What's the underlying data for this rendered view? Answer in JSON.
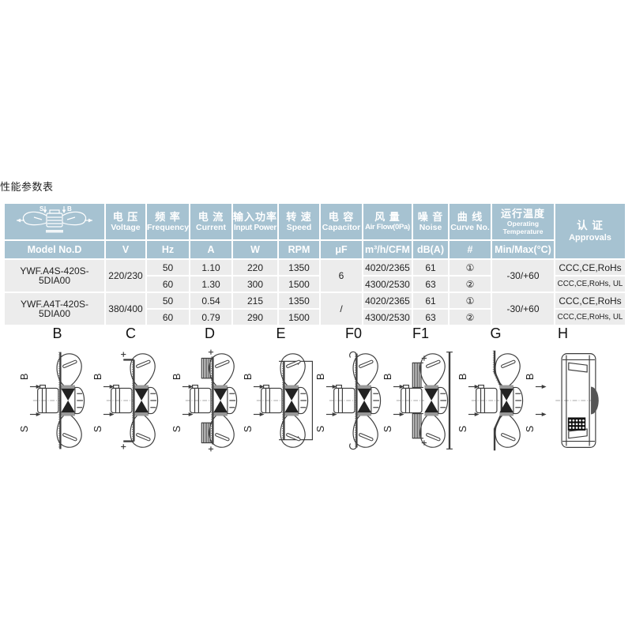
{
  "page": {
    "title": "性能参数表"
  },
  "colors": {
    "header_bg": "#a6c2d1",
    "cell_bg": "#ececec",
    "line": "#3d3d3d"
  },
  "table": {
    "model_header": "Model No.D",
    "header_icon": "fan-side-view-icon",
    "icon_axis_top": "S",
    "icon_axis_bottom": "B",
    "columns": [
      {
        "zh": "电 压",
        "en": "Voltage",
        "unit": "V"
      },
      {
        "zh": "频 率",
        "en": "Frequency",
        "unit": "Hz"
      },
      {
        "zh": "电 流",
        "en": "Current",
        "unit": "A"
      },
      {
        "zh": "输入功率",
        "en": "Input Power",
        "unit": "W"
      },
      {
        "zh": "转 速",
        "en": "Speed",
        "unit": "RPM"
      },
      {
        "zh": "电 容",
        "en": "Capacitor",
        "unit": "μF"
      },
      {
        "zh": "风 量",
        "en": "Air Flow(0Pa)",
        "unit": "m³/h/CFM"
      },
      {
        "zh": "噪 音",
        "en": "Noise",
        "unit": "dB(A)"
      },
      {
        "zh": "曲 线",
        "en": "Curve No.",
        "unit": "#"
      },
      {
        "zh": "运行温度",
        "en": "Operating Temperature",
        "unit": "Min/Max(°C)"
      },
      {
        "zh": "认 证",
        "en": "Approvals",
        "unit": ""
      }
    ],
    "groups": [
      {
        "model": "YWF.A4S-420S-5DIA00",
        "voltage": "220/230",
        "capacitor": "6",
        "temperature": "-30/+60",
        "rows": [
          {
            "hz": "50",
            "a": "1.10",
            "w": "220",
            "rpm": "1350",
            "airflow": "4020/2365",
            "db": "61",
            "curve": "①",
            "approvals": "CCC,CE,RoHs"
          },
          {
            "hz": "60",
            "a": "1.30",
            "w": "300",
            "rpm": "1500",
            "airflow": "4300/2530",
            "db": "63",
            "curve": "②",
            "approvals": "CCC,CE,RoHs, UL"
          }
        ]
      },
      {
        "model": "YWF.A4T-420S-5DIA00",
        "voltage": "380/400",
        "capacitor": "/",
        "temperature": "-30/+60",
        "rows": [
          {
            "hz": "50",
            "a": "0.54",
            "w": "215",
            "rpm": "1350",
            "airflow": "4020/2365",
            "db": "61",
            "curve": "①",
            "approvals": "CCC,CE,RoHs"
          },
          {
            "hz": "60",
            "a": "0.79",
            "w": "290",
            "rpm": "1500",
            "airflow": "4300/2530",
            "db": "63",
            "curve": "②",
            "approvals": "CCC,CE,RoHs, UL"
          }
        ]
      }
    ]
  },
  "diagrams": {
    "axis_top": "B",
    "axis_bottom": "S",
    "labels": [
      "B",
      "C",
      "D",
      "E",
      "F0",
      "F1",
      "G",
      "H"
    ]
  }
}
